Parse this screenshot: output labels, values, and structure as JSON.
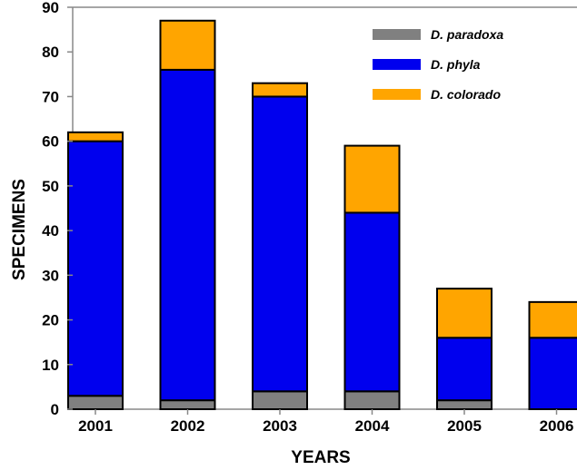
{
  "chart_data": {
    "type": "bar",
    "stacked": true,
    "categories": [
      "2001",
      "2002",
      "2003",
      "2004",
      "2005",
      "2006"
    ],
    "series": [
      {
        "name": "D. paradoxa",
        "color": "#808080",
        "values": [
          3,
          2,
          4,
          4,
          2,
          0
        ]
      },
      {
        "name": "D. phyla",
        "color": "#0000ee",
        "values": [
          57,
          74,
          66,
          40,
          14,
          16
        ]
      },
      {
        "name": "D. colorado",
        "color": "#ffa500",
        "values": [
          2,
          11,
          3,
          15,
          11,
          8
        ]
      }
    ],
    "title": "",
    "xlabel": "YEARS",
    "ylabel": "SPECIMENS",
    "ylim": [
      0,
      90
    ],
    "yticks": [
      0,
      10,
      20,
      30,
      40,
      50,
      60,
      70,
      80,
      90
    ],
    "grid": false,
    "legend_position": "top-right"
  }
}
